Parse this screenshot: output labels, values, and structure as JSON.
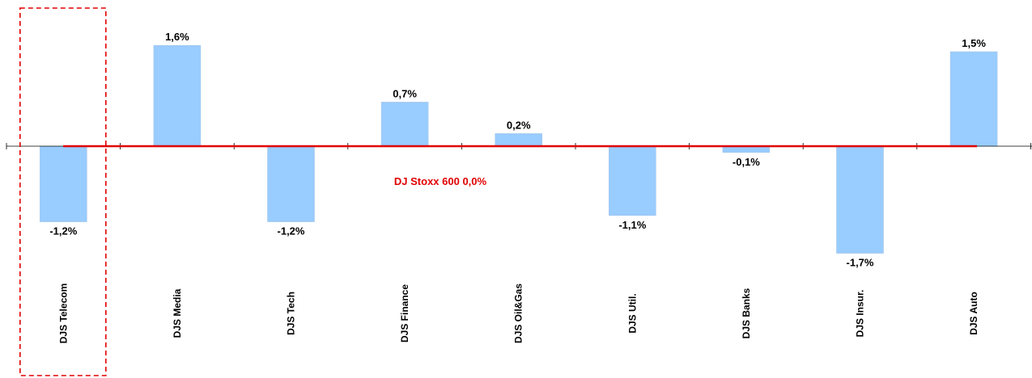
{
  "chart_data": {
    "type": "bar",
    "categories": [
      "DJS Telecom",
      "DJS Media",
      "DJS Tech",
      "DJS Finance",
      "DJS Oil&Gas",
      "DJS Util.",
      "DJS Banks",
      "DJS Insur.",
      "DJS Auto"
    ],
    "values": [
      -1.2,
      1.6,
      -1.2,
      0.7,
      0.2,
      -1.1,
      -0.1,
      -1.7,
      1.5
    ],
    "value_labels": [
      "-1,2%",
      "1,6%",
      "-1,2%",
      "0,7%",
      "0,2%",
      "-1,1%",
      "-0,1%",
      "-1,7%",
      "1,5%"
    ],
    "title": "",
    "xlabel": "",
    "ylabel": "",
    "ylim": [
      -2.0,
      2.0
    ],
    "reference_line": {
      "value": 0.0,
      "label": "DJ Stoxx 600 0,0%",
      "color": "#e00000"
    },
    "highlighted_category": "DJS Telecom",
    "highlight_color": "#e00000",
    "bar_color": "#99ccff",
    "grid": false,
    "legend": "none"
  }
}
